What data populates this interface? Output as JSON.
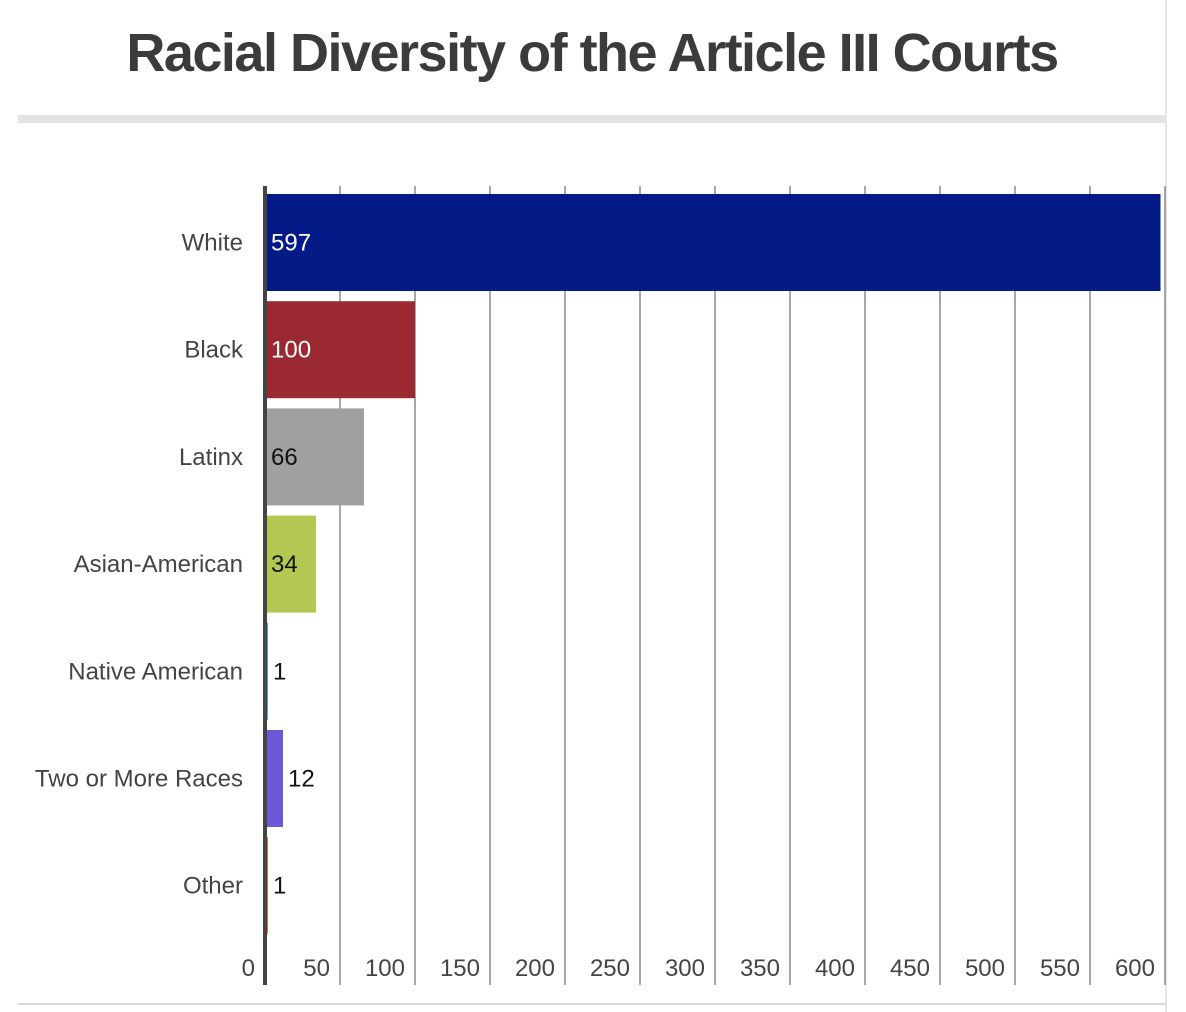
{
  "chart_data": {
    "type": "bar",
    "orientation": "horizontal",
    "title": "Racial Diversity of the Article III Courts",
    "categories": [
      "White",
      "Black",
      "Latinx",
      "Asian-American",
      "Native American",
      "Two or More Races",
      "Other"
    ],
    "values": [
      597,
      100,
      66,
      34,
      1,
      12,
      1
    ],
    "colors": [
      "#041a87",
      "#9b2931",
      "#a0a0a0",
      "#b2c853",
      "#4aa6d6",
      "#6b58d6",
      "#e5733d"
    ],
    "value_label_colors": [
      "#ffffff",
      "#ffffff",
      "#111111",
      "#111111",
      "#111111",
      "#111111",
      "#111111"
    ],
    "xlim": [
      0,
      600
    ],
    "xticks": [
      0,
      50,
      100,
      150,
      200,
      250,
      300,
      350,
      400,
      450,
      500,
      550,
      600
    ],
    "xlabel": "",
    "ylabel": "",
    "grid": "vertical"
  }
}
